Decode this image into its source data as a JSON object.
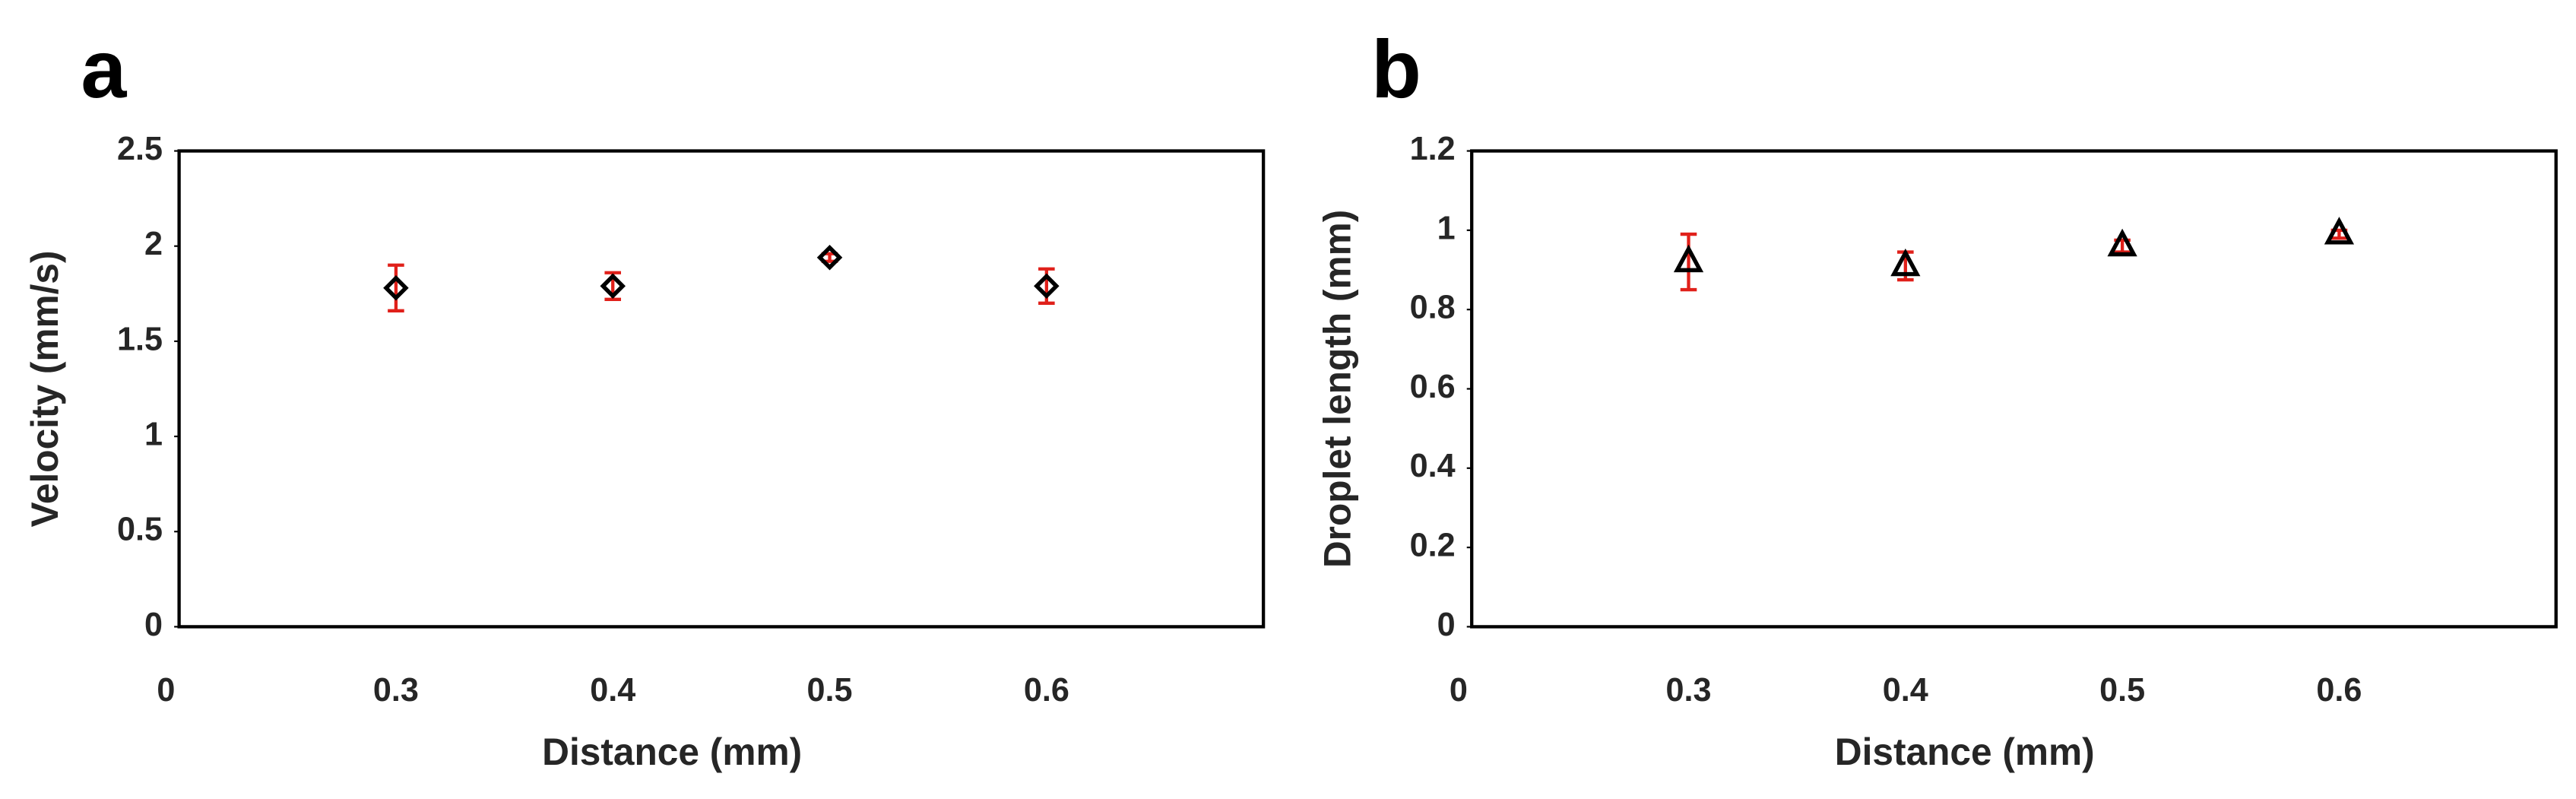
{
  "chart_data": [
    {
      "type": "scatter",
      "panel_label": "a",
      "x_label": "Distance (mm)",
      "y_label": "Velocity (mm/s)",
      "categories": [
        "0",
        "0.3",
        "0.4",
        "0.5",
        "0.6"
      ],
      "values": [
        null,
        1.78,
        1.79,
        1.94,
        1.79
      ],
      "errors": [
        null,
        0.12,
        0.07,
        0.02,
        0.09
      ],
      "marker": "diamond",
      "marker_color": "#000000",
      "error_color": "#e0201a",
      "ylim": [
        0,
        2.5
      ],
      "yticks": [
        0,
        0.5,
        1,
        1.5,
        2,
        2.5
      ],
      "grid": false
    },
    {
      "type": "scatter",
      "panel_label": "b",
      "x_label": "Distance (mm)",
      "y_label": "Droplet length (mm)",
      "categories": [
        "0",
        "0.3",
        "0.4",
        "0.5",
        "0.6"
      ],
      "values": [
        null,
        0.92,
        0.91,
        0.96,
        0.99
      ],
      "errors": [
        null,
        0.07,
        0.035,
        0.015,
        0.01
      ],
      "marker": "triangle",
      "marker_color": "#000000",
      "error_color": "#e0201a",
      "ylim": [
        0,
        1.2
      ],
      "yticks": [
        0,
        0.2,
        0.4,
        0.6,
        0.8,
        1,
        1.2
      ],
      "grid": false
    }
  ]
}
